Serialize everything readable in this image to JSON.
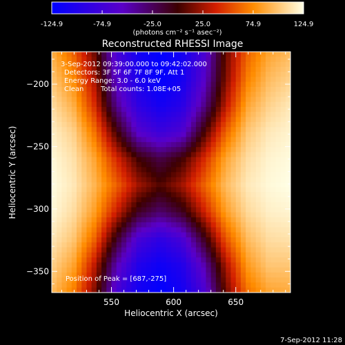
{
  "chart_data": {
    "type": "heatmap",
    "title": "Reconstructed RHESSI Image",
    "xlabel": "Heliocentric X (arcsec)",
    "ylabel": "Heliocentric Y (arcsec)",
    "xlim": [
      502,
      694
    ],
    "ylim": [
      -367,
      -174
    ],
    "x_ticks": [
      550,
      600,
      650
    ],
    "y_ticks": [
      -200,
      -250,
      -300,
      -350
    ],
    "colorbar": {
      "ticks": [
        "-124.9",
        "-74.9",
        "-25.0",
        "25.0",
        "74.9",
        "124.9"
      ],
      "range": [
        -124.9,
        124.9
      ],
      "unit_label": "(photons cm⁻² s⁻¹ asec⁻²)"
    },
    "annotations": {
      "time_range": "3-Sep-2012 09:39:00.000 to 09:42:02.000",
      "detectors": "Detectors: 3F 5F 6F 7F 8F 9F, Att 1",
      "energy": "Energy Range: 3.0 - 6.0 keV",
      "clean": "Clean",
      "counts": "Total counts: 1.08E+05",
      "peak": "Position of Peak = [687,-275]"
    },
    "peak_position": [
      687,
      -275
    ],
    "field_values": [
      [
        90,
        60,
        10,
        -70,
        -110,
        -124,
        -110,
        -70,
        10,
        60,
        85,
        95
      ],
      [
        100,
        75,
        25,
        -60,
        -105,
        -124,
        -110,
        -60,
        15,
        70,
        95,
        105
      ],
      [
        110,
        90,
        40,
        -40,
        -90,
        -110,
        -95,
        -40,
        30,
        85,
        105,
        115
      ],
      [
        118,
        105,
        65,
        0,
        -60,
        -80,
        -65,
        0,
        60,
        100,
        115,
        120
      ],
      [
        122,
        112,
        85,
        40,
        0,
        -20,
        0,
        40,
        85,
        110,
        120,
        123
      ],
      [
        124,
        115,
        92,
        60,
        25,
        5,
        25,
        60,
        95,
        115,
        122,
        124.9
      ],
      [
        122,
        110,
        82,
        35,
        -10,
        -30,
        -10,
        35,
        82,
        108,
        118,
        120
      ],
      [
        115,
        100,
        60,
        -10,
        -70,
        -90,
        -70,
        -10,
        55,
        95,
        110,
        112
      ],
      [
        105,
        85,
        30,
        -50,
        -100,
        -115,
        -100,
        -50,
        25,
        80,
        100,
        100
      ],
      [
        95,
        70,
        15,
        -70,
        -110,
        -124,
        -110,
        -70,
        10,
        65,
        85,
        88
      ]
    ]
  },
  "footer": {
    "datestamp": "7-Sep-2012 11:28"
  }
}
